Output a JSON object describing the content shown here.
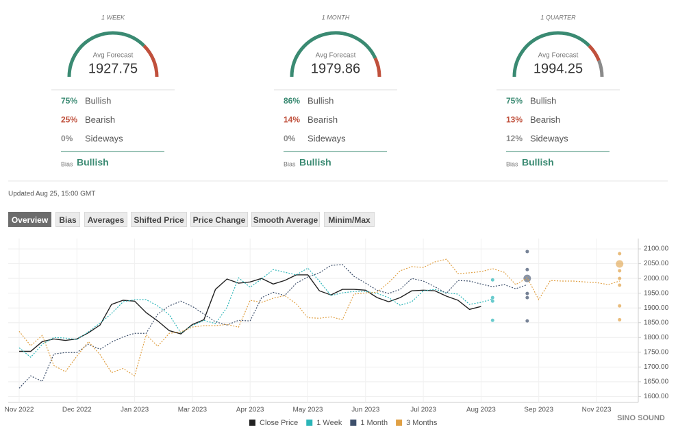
{
  "gauges": [
    {
      "period": "1 WEEK",
      "caption": "Avg Forecast",
      "average": "1927.75",
      "rows": [
        {
          "percent": 75,
          "label": "75%",
          "name": "Bullish"
        },
        {
          "percent": 25,
          "label": "25%",
          "name": "Bearish"
        },
        {
          "percent": 0,
          "label": "0%",
          "name": "Sideways"
        }
      ],
      "bias_caption": "Bias",
      "bias": "Bullish"
    },
    {
      "period": "1 MONTH",
      "caption": "Avg Forecast",
      "average": "1979.86",
      "rows": [
        {
          "percent": 86,
          "label": "86%",
          "name": "Bullish"
        },
        {
          "percent": 14,
          "label": "14%",
          "name": "Bearish"
        },
        {
          "percent": 0,
          "label": "0%",
          "name": "Sideways"
        }
      ],
      "bias_caption": "Bias",
      "bias": "Bullish"
    },
    {
      "period": "1 QUARTER",
      "caption": "Avg Forecast",
      "average": "1994.25",
      "rows": [
        {
          "percent": 75,
          "label": "75%",
          "name": "Bullish"
        },
        {
          "percent": 13,
          "label": "13%",
          "name": "Bearish"
        },
        {
          "percent": 12,
          "label": "12%",
          "name": "Sideways"
        }
      ],
      "bias_caption": "Bias",
      "bias": "Bullish"
    }
  ],
  "row_colors": [
    "#3a8a72",
    "#c0503c",
    "#8a8a8a"
  ],
  "updated": "Updated Aug 25, 15:00 GMT",
  "tabs": [
    "Overview",
    "Bias",
    "Averages",
    "Shifted Price",
    "Price Change",
    "Smooth Average",
    "Minim/Max"
  ],
  "watermark": "SINO SOUND",
  "chart_data": {
    "type": "line",
    "categories": [
      "Nov 2022",
      null,
      null,
      null,
      null,
      "Dec 2022",
      null,
      null,
      null,
      null,
      "Jan 2023",
      null,
      null,
      null,
      null,
      "Mar 2023",
      null,
      null,
      null,
      null,
      "Apr 2023",
      null,
      null,
      null,
      null,
      "May 2023",
      null,
      null,
      null,
      null,
      "Jun 2023",
      null,
      null,
      null,
      null,
      "Jul 2023",
      null,
      null,
      null,
      null,
      "Aug 2023",
      null,
      null,
      null,
      null,
      "Sep 2023",
      null,
      null,
      null,
      null,
      "Nov 2023",
      null,
      null,
      null
    ],
    "ylim": [
      1580,
      2135
    ],
    "yticks": [
      {
        "value": 1600,
        "label": "1600.00"
      },
      {
        "value": 1650,
        "label": "1650.00"
      },
      {
        "value": 1700,
        "label": "1700.00"
      },
      {
        "value": 1750,
        "label": "1750.00"
      },
      {
        "value": 1800,
        "label": "1800.00"
      },
      {
        "value": 1850,
        "label": "1850.00"
      },
      {
        "value": 1900,
        "label": "1900.00"
      },
      {
        "value": 1950,
        "label": "1950.00"
      },
      {
        "value": 2000,
        "label": "2000.00"
      },
      {
        "value": 2050,
        "label": "2050.00"
      },
      {
        "value": 2100,
        "label": "2100.00"
      }
    ],
    "grid": true,
    "series": [
      {
        "name": "Close Price",
        "color": "#222222",
        "style": "solid",
        "values": [
          1753,
          1753,
          1786,
          1795,
          1790,
          1795,
          1816,
          1842,
          1912,
          1926,
          1923,
          1884,
          1856,
          1823,
          1812,
          1844,
          1860,
          1963,
          1998,
          1984,
          1988,
          2000,
          1981,
          1993,
          2012,
          2012,
          1958,
          1944,
          1963,
          1963,
          1960,
          1935,
          1921,
          1935,
          1958,
          1960,
          1958,
          1940,
          1926,
          1895,
          1905,
          null,
          null,
          null,
          null,
          null,
          null,
          null,
          null,
          null,
          null,
          null,
          null,
          null
        ]
      },
      {
        "name": "1 Week",
        "color": "#2bb5b8",
        "style": "dotted",
        "values": [
          1765,
          1733,
          1777,
          1800,
          1798,
          1793,
          1819,
          1849,
          1881,
          1921,
          1928,
          1928,
          1907,
          1877,
          1816,
          1840,
          1858,
          1847,
          1902,
          2002,
          1970,
          1998,
          2030,
          2021,
          2012,
          2035,
          1991,
          1942,
          1951,
          1956,
          1956,
          1949,
          1935,
          1909,
          1921,
          1958,
          1963,
          1951,
          1947,
          1912,
          1919,
          1930,
          null,
          null,
          null,
          null,
          null,
          null,
          null,
          null,
          null,
          null,
          null,
          null
        ],
        "forecast_values": [
          1995,
          1935,
          1923,
          1858
        ]
      },
      {
        "name": "1 Month",
        "color": "#3d4f6b",
        "style": "dotted",
        "values": [
          1628,
          1670,
          1651,
          1744,
          1749,
          1749,
          1777,
          1760,
          1784,
          1802,
          1814,
          1814,
          1879,
          1907,
          1923,
          1905,
          1879,
          1853,
          1842,
          1858,
          1856,
          1935,
          1953,
          1942,
          1984,
          2005,
          2019,
          2044,
          2047,
          2007,
          1984,
          1960,
          1949,
          1963,
          2000,
          1991,
          1972,
          1949,
          1993,
          1991,
          1981,
          1972,
          1979,
          1965,
          1979,
          null,
          null,
          null,
          null,
          null,
          null,
          null,
          null,
          null
        ],
        "forecast_values": [
          2091,
          2030,
          1949,
          1935,
          1856
        ],
        "forecast_average": 2000
      },
      {
        "name": "3 Months",
        "color": "#e0a044",
        "style": "dotted",
        "values": [
          1821,
          1772,
          1807,
          1705,
          1684,
          1737,
          1786,
          1742,
          1681,
          1695,
          1670,
          1809,
          1770,
          1814,
          1819,
          1835,
          1840,
          1840,
          1844,
          1835,
          1926,
          1919,
          1933,
          1942,
          1914,
          1867,
          1865,
          1870,
          1860,
          1947,
          1951,
          1953,
          1986,
          2026,
          2040,
          2037,
          2056,
          2065,
          2016,
          2019,
          2023,
          2033,
          2021,
          1979,
          2002,
          1928,
          1993,
          1991,
          1991,
          1988,
          1986,
          1979,
          1991,
          null
        ],
        "forecast_values": [
          2084,
          2026,
          2000,
          1977,
          1907,
          1860
        ],
        "forecast_average": 2049
      }
    ]
  }
}
